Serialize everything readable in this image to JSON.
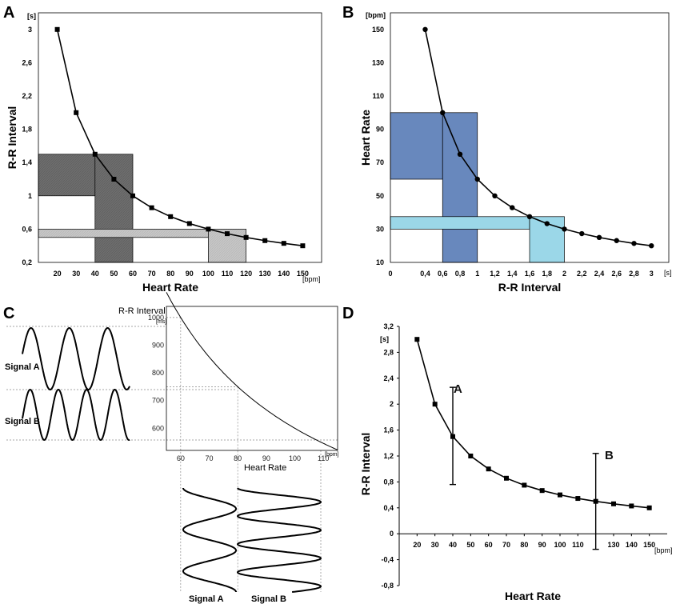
{
  "panels": {
    "A": {
      "label": "A",
      "xlabel": "Heart Rate",
      "ylabel": "R-R Interval",
      "xunit": "[bpm]",
      "yunit": "[s]",
      "xticks": [
        "20",
        "30",
        "40",
        "50",
        "60",
        "70",
        "80",
        "90",
        "100",
        "110",
        "120",
        "130",
        "140",
        "150"
      ],
      "yticks": [
        "3",
        "2,6",
        "2,2",
        "1,8",
        "1,4",
        "1",
        "0,6",
        "0,2"
      ]
    },
    "B": {
      "label": "B",
      "xlabel": "R-R Interval",
      "ylabel": "Heart Rate",
      "xunit": "[s]",
      "yunit": "[bpm]",
      "xticks": [
        "0",
        "0,4",
        "0,6",
        "0,8",
        "1",
        "1,2",
        "1,4",
        "1,6",
        "1,8",
        "2",
        "2,2",
        "2,4",
        "2,6",
        "2,8",
        "3"
      ],
      "yticks": [
        "150",
        "130",
        "110",
        "90",
        "70",
        "50",
        "30",
        "10"
      ]
    },
    "C": {
      "label": "C",
      "ylabel": "R-R Interval",
      "yunit": "[ms]",
      "xlabel": "Heart Rate",
      "xunit": "[bpm]",
      "xticks": [
        "60",
        "70",
        "80",
        "90",
        "100",
        "110"
      ],
      "yticks": [
        "1000",
        "900",
        "800",
        "700",
        "600"
      ],
      "signal_a": "Signal A",
      "signal_b": "Signal B",
      "signal_a_bottom": "Signal A",
      "signal_b_bottom": "Signal B"
    },
    "D": {
      "label": "D",
      "xlabel": "Heart Rate",
      "ylabel": "R-R Interval",
      "xunit": "[bpm]",
      "yunit": "[s]",
      "xticks": [
        "20",
        "30",
        "40",
        "50",
        "60",
        "70",
        "80",
        "90",
        "100",
        "110",
        "130",
        "140",
        "150"
      ],
      "yticks": [
        "3,2",
        "2,8",
        "2,4",
        "2",
        "1,6",
        "1,2",
        "0,8",
        "0,4",
        "0",
        "-0,4",
        "-0,8"
      ],
      "annot_a": "A",
      "annot_b": "B"
    }
  },
  "colors": {
    "dark_gray": "#6e6e6e",
    "light_gray": "#c6c6c6",
    "blue": "#6888bd",
    "light_blue": "#9bd7e8",
    "line": "#000000"
  },
  "chart_data": [
    {
      "panel": "A",
      "type": "line",
      "title": "",
      "xlabel": "Heart Rate",
      "ylabel": "R-R Interval",
      "x": [
        20,
        30,
        40,
        50,
        60,
        70,
        80,
        90,
        100,
        110,
        120,
        130,
        140,
        150
      ],
      "series": [
        {
          "name": "R-R Interval",
          "values": [
            3,
            2,
            1.5,
            1.2,
            1,
            0.857,
            0.75,
            0.667,
            0.6,
            0.545,
            0.5,
            0.462,
            0.429,
            0.4
          ]
        }
      ],
      "xlim": [
        10,
        160
      ],
      "ylim": [
        0.2,
        3.2
      ],
      "shaded_regions": [
        {
          "color": "dark",
          "x": [
            10,
            40
          ],
          "y": [
            1.0,
            1.5
          ]
        },
        {
          "color": "dark",
          "x": [
            40,
            60
          ],
          "y": [
            0.2,
            1.5
          ]
        },
        {
          "color": "light",
          "x": [
            10,
            100
          ],
          "y": [
            0.5,
            0.6
          ]
        },
        {
          "color": "light",
          "x": [
            100,
            120
          ],
          "y": [
            0.2,
            0.6
          ]
        }
      ]
    },
    {
      "panel": "B",
      "type": "line",
      "title": "",
      "xlabel": "R-R Interval",
      "ylabel": "Heart Rate",
      "x": [
        0.4,
        0.6,
        0.8,
        1,
        1.2,
        1.4,
        1.6,
        1.8,
        2,
        2.2,
        2.4,
        2.6,
        2.8,
        3
      ],
      "series": [
        {
          "name": "Heart Rate",
          "values": [
            150,
            100,
            75,
            60,
            50,
            42.9,
            37.5,
            33.3,
            30,
            27.3,
            25,
            23.1,
            21.4,
            20
          ]
        }
      ],
      "xlim": [
        0,
        3.2
      ],
      "ylim": [
        10,
        160
      ],
      "shaded_regions": [
        {
          "color": "blue",
          "x": [
            0,
            0.6
          ],
          "y": [
            60,
            100
          ]
        },
        {
          "color": "blue",
          "x": [
            0.6,
            1.0
          ],
          "y": [
            10,
            100
          ]
        },
        {
          "color": "lightblue",
          "x": [
            0,
            1.6
          ],
          "y": [
            30,
            37.5
          ]
        },
        {
          "color": "lightblue",
          "x": [
            1.6,
            2.0
          ],
          "y": [
            10,
            37.5
          ]
        }
      ]
    },
    {
      "panel": "C",
      "type": "line",
      "title": "",
      "xlabel": "Heart Rate",
      "ylabel": "R-R Interval",
      "x": [
        55,
        60,
        65,
        70,
        75,
        80,
        85,
        90,
        95,
        100,
        105,
        110,
        115
      ],
      "series": [
        {
          "name": "R-R Interval (ms)",
          "values": [
            1090.9,
            1000,
            923.1,
            857.1,
            800,
            750,
            705.9,
            666.7,
            631.6,
            600,
            571.4,
            545.5,
            521.7
          ]
        }
      ],
      "xlim": [
        55,
        115
      ],
      "ylim": [
        520,
        1040
      ],
      "guides": [
        {
          "x": 60,
          "y": 1000
        },
        {
          "x": 80,
          "y": 750
        }
      ]
    },
    {
      "panel": "D",
      "type": "line",
      "title": "",
      "xlabel": "Heart Rate",
      "ylabel": "R-R Interval",
      "x": [
        20,
        30,
        40,
        50,
        60,
        70,
        80,
        90,
        100,
        110,
        120,
        130,
        140,
        150
      ],
      "series": [
        {
          "name": "R-R Interval",
          "values": [
            3,
            2,
            1.5,
            1.2,
            1,
            0.857,
            0.75,
            0.667,
            0.6,
            0.545,
            0.5,
            0.462,
            0.429,
            0.4
          ]
        }
      ],
      "xlim": [
        10,
        160
      ],
      "ylim": [
        -0.8,
        3.2
      ],
      "error_bars": [
        {
          "label": "A",
          "x": 40,
          "y": 1.5,
          "low": 0.76,
          "high": 2.26
        },
        {
          "label": "B",
          "x": 120,
          "y": 0.5,
          "low": -0.24,
          "high": 1.24
        }
      ]
    }
  ]
}
